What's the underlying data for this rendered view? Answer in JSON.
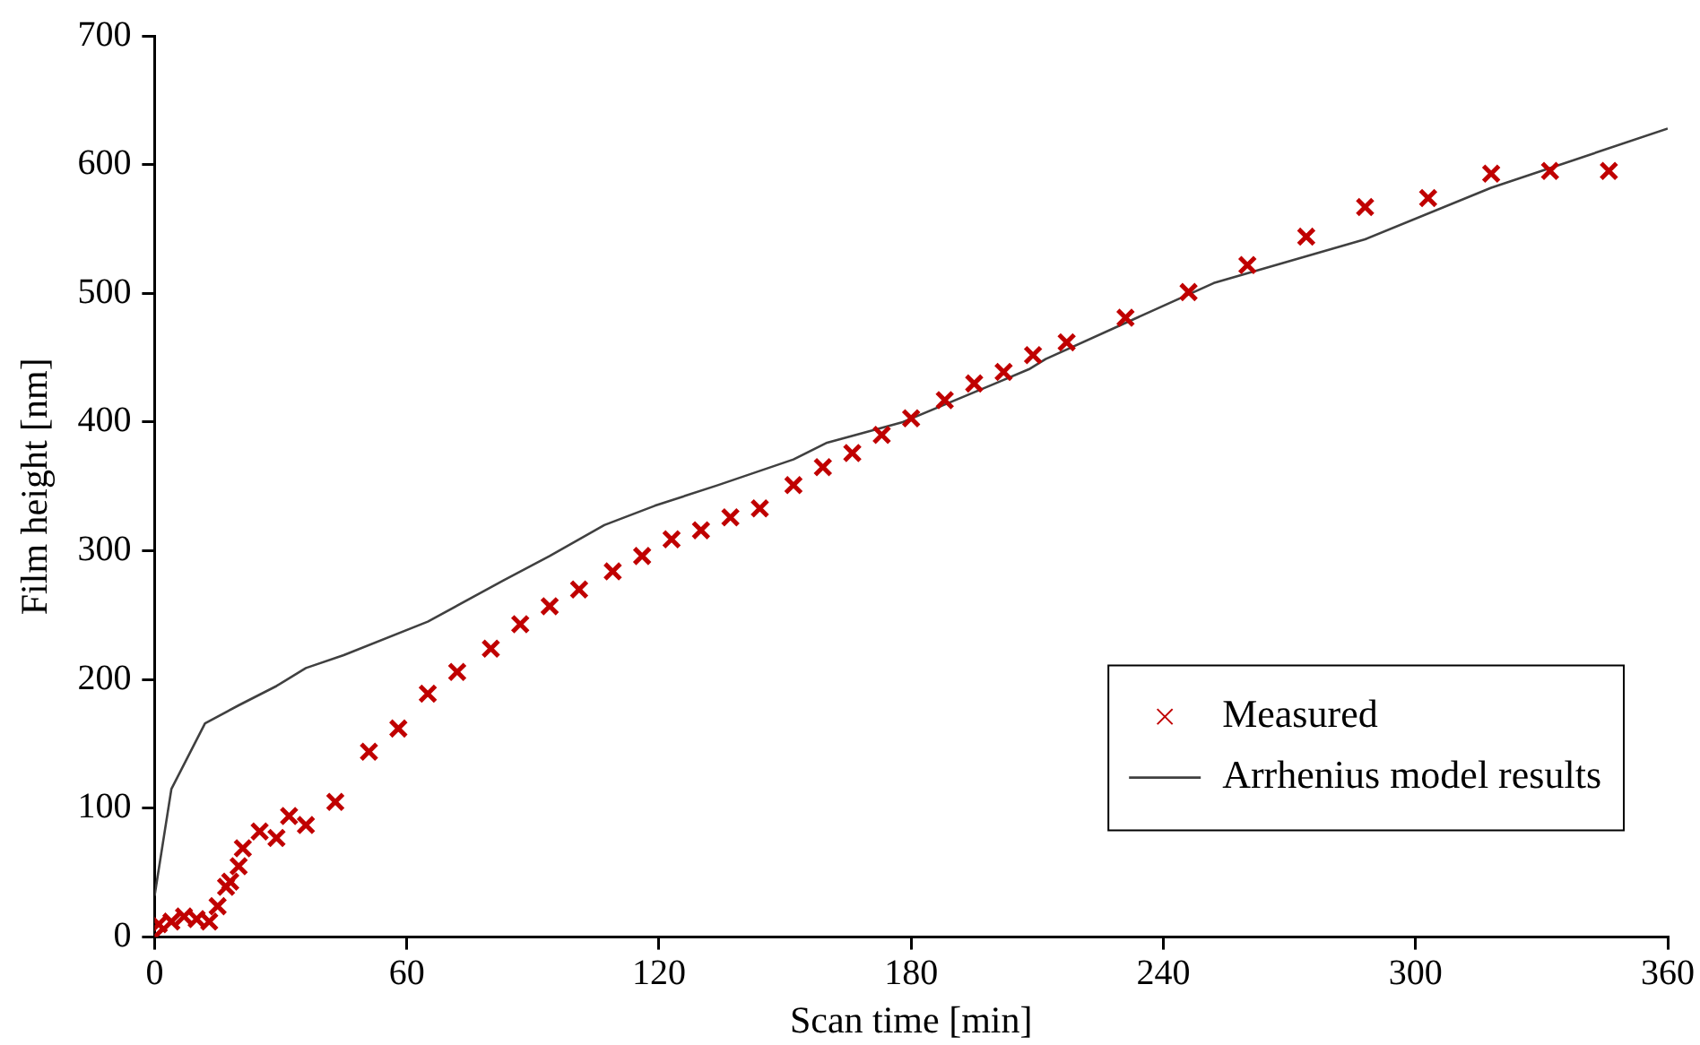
{
  "chart_data": {
    "type": "scatter",
    "xlabel": "Scan time [min]",
    "ylabel": "Film height [nm]",
    "xlim": [
      0,
      360
    ],
    "xticks": [
      0,
      60,
      120,
      180,
      240,
      300,
      360
    ],
    "ylim": [
      0,
      700
    ],
    "yticks": [
      0,
      100,
      200,
      300,
      400,
      500,
      600,
      700
    ],
    "grid": false,
    "legend": "bottom right",
    "series": [
      {
        "name": "Measured",
        "marker": "cross",
        "color": "#c00000",
        "x": [
          0,
          1,
          4,
          7,
          10,
          13,
          15,
          17,
          18,
          20,
          21,
          25,
          29,
          32,
          36,
          43,
          51,
          58,
          65,
          72,
          80,
          87,
          94,
          101,
          109,
          116,
          123,
          130,
          137,
          144,
          152,
          159,
          166,
          173,
          180,
          188,
          195,
          202,
          209,
          217,
          231,
          246,
          260,
          274,
          288,
          303,
          318,
          332,
          346
        ],
        "values": [
          0,
          10,
          12,
          16,
          14,
          12,
          24,
          39,
          43,
          55,
          69,
          82,
          77,
          94,
          87,
          105,
          144,
          162,
          189,
          206,
          224,
          243,
          257,
          270,
          284,
          296,
          309,
          316,
          326,
          333,
          351,
          365,
          376,
          390,
          403,
          417,
          430,
          439,
          452,
          462,
          481,
          501,
          522,
          544,
          567,
          574,
          593,
          595,
          595
        ]
      },
      {
        "name": "Arrhenius model results",
        "type": "line",
        "marker": "none",
        "color": "#404040",
        "x": [
          0,
          4,
          12,
          20,
          29,
          36,
          45,
          65,
          83,
          94,
          107,
          119,
          134,
          152,
          160,
          178,
          200,
          208,
          212,
          252,
          288,
          318,
          360
        ],
        "values": [
          32,
          115,
          166,
          180,
          195,
          209,
          219,
          245,
          277,
          296,
          320,
          335,
          351,
          371,
          384,
          400,
          430,
          441,
          449,
          508,
          542,
          582,
          628
        ]
      }
    ]
  }
}
